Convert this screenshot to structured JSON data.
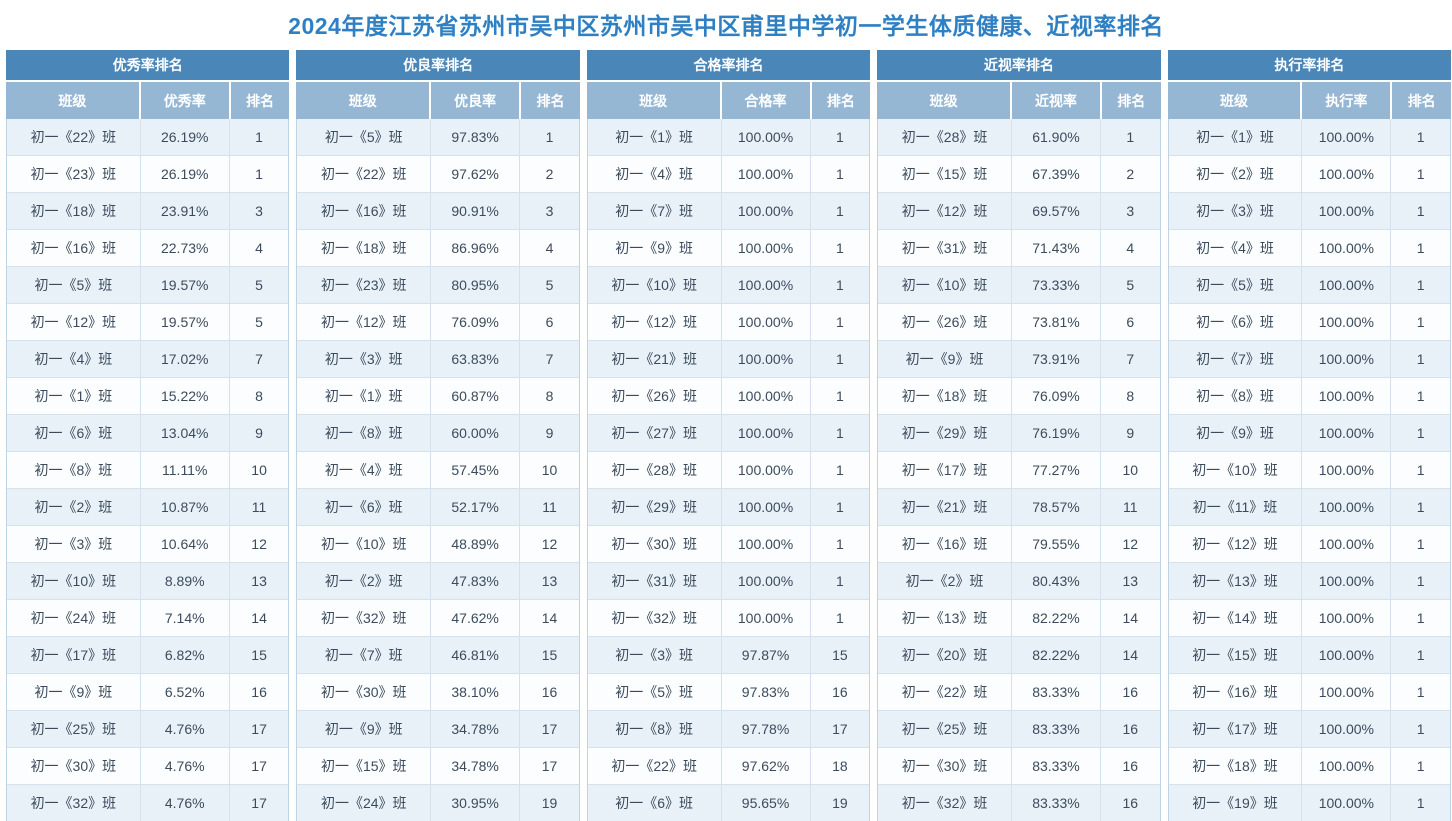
{
  "title": "2024年度江苏省苏州市吴中区苏州市吴中区甫里中学初一学生体质健康、近视率排名",
  "colors": {
    "title_color": "#2F80C3",
    "header_bg": "#4A86B8",
    "subheader_bg": "#96B7D4",
    "row_odd": "#E9F1F8",
    "row_even": "#FBFDFE",
    "row_border": "#D5E1EC",
    "outer_border": "#BFD3E3",
    "text_color": "#3B4B5C"
  },
  "tables": [
    {
      "title": "优秀率排名",
      "columns": [
        "班级",
        "优秀率",
        "排名"
      ],
      "rows": [
        [
          "初一《22》班",
          "26.19%",
          "1"
        ],
        [
          "初一《23》班",
          "26.19%",
          "1"
        ],
        [
          "初一《18》班",
          "23.91%",
          "3"
        ],
        [
          "初一《16》班",
          "22.73%",
          "4"
        ],
        [
          "初一《5》班",
          "19.57%",
          "5"
        ],
        [
          "初一《12》班",
          "19.57%",
          "5"
        ],
        [
          "初一《4》班",
          "17.02%",
          "7"
        ],
        [
          "初一《1》班",
          "15.22%",
          "8"
        ],
        [
          "初一《6》班",
          "13.04%",
          "9"
        ],
        [
          "初一《8》班",
          "11.11%",
          "10"
        ],
        [
          "初一《2》班",
          "10.87%",
          "11"
        ],
        [
          "初一《3》班",
          "10.64%",
          "12"
        ],
        [
          "初一《10》班",
          "8.89%",
          "13"
        ],
        [
          "初一《24》班",
          "7.14%",
          "14"
        ],
        [
          "初一《17》班",
          "6.82%",
          "15"
        ],
        [
          "初一《9》班",
          "6.52%",
          "16"
        ],
        [
          "初一《25》班",
          "4.76%",
          "17"
        ],
        [
          "初一《30》班",
          "4.76%",
          "17"
        ],
        [
          "初一《32》班",
          "4.76%",
          "17"
        ]
      ]
    },
    {
      "title": "优良率排名",
      "columns": [
        "班级",
        "优良率",
        "排名"
      ],
      "rows": [
        [
          "初一《5》班",
          "97.83%",
          "1"
        ],
        [
          "初一《22》班",
          "97.62%",
          "2"
        ],
        [
          "初一《16》班",
          "90.91%",
          "3"
        ],
        [
          "初一《18》班",
          "86.96%",
          "4"
        ],
        [
          "初一《23》班",
          "80.95%",
          "5"
        ],
        [
          "初一《12》班",
          "76.09%",
          "6"
        ],
        [
          "初一《3》班",
          "63.83%",
          "7"
        ],
        [
          "初一《1》班",
          "60.87%",
          "8"
        ],
        [
          "初一《8》班",
          "60.00%",
          "9"
        ],
        [
          "初一《4》班",
          "57.45%",
          "10"
        ],
        [
          "初一《6》班",
          "52.17%",
          "11"
        ],
        [
          "初一《10》班",
          "48.89%",
          "12"
        ],
        [
          "初一《2》班",
          "47.83%",
          "13"
        ],
        [
          "初一《32》班",
          "47.62%",
          "14"
        ],
        [
          "初一《7》班",
          "46.81%",
          "15"
        ],
        [
          "初一《30》班",
          "38.10%",
          "16"
        ],
        [
          "初一《9》班",
          "34.78%",
          "17"
        ],
        [
          "初一《15》班",
          "34.78%",
          "17"
        ],
        [
          "初一《24》班",
          "30.95%",
          "19"
        ]
      ]
    },
    {
      "title": "合格率排名",
      "columns": [
        "班级",
        "合格率",
        "排名"
      ],
      "rows": [
        [
          "初一《1》班",
          "100.00%",
          "1"
        ],
        [
          "初一《4》班",
          "100.00%",
          "1"
        ],
        [
          "初一《7》班",
          "100.00%",
          "1"
        ],
        [
          "初一《9》班",
          "100.00%",
          "1"
        ],
        [
          "初一《10》班",
          "100.00%",
          "1"
        ],
        [
          "初一《12》班",
          "100.00%",
          "1"
        ],
        [
          "初一《21》班",
          "100.00%",
          "1"
        ],
        [
          "初一《26》班",
          "100.00%",
          "1"
        ],
        [
          "初一《27》班",
          "100.00%",
          "1"
        ],
        [
          "初一《28》班",
          "100.00%",
          "1"
        ],
        [
          "初一《29》班",
          "100.00%",
          "1"
        ],
        [
          "初一《30》班",
          "100.00%",
          "1"
        ],
        [
          "初一《31》班",
          "100.00%",
          "1"
        ],
        [
          "初一《32》班",
          "100.00%",
          "1"
        ],
        [
          "初一《3》班",
          "97.87%",
          "15"
        ],
        [
          "初一《5》班",
          "97.83%",
          "16"
        ],
        [
          "初一《8》班",
          "97.78%",
          "17"
        ],
        [
          "初一《22》班",
          "97.62%",
          "18"
        ],
        [
          "初一《6》班",
          "95.65%",
          "19"
        ]
      ]
    },
    {
      "title": "近视率排名",
      "columns": [
        "班级",
        "近视率",
        "排名"
      ],
      "rows": [
        [
          "初一《28》班",
          "61.90%",
          "1"
        ],
        [
          "初一《15》班",
          "67.39%",
          "2"
        ],
        [
          "初一《12》班",
          "69.57%",
          "3"
        ],
        [
          "初一《31》班",
          "71.43%",
          "4"
        ],
        [
          "初一《10》班",
          "73.33%",
          "5"
        ],
        [
          "初一《26》班",
          "73.81%",
          "6"
        ],
        [
          "初一《9》班",
          "73.91%",
          "7"
        ],
        [
          "初一《18》班",
          "76.09%",
          "8"
        ],
        [
          "初一《29》班",
          "76.19%",
          "9"
        ],
        [
          "初一《17》班",
          "77.27%",
          "10"
        ],
        [
          "初一《21》班",
          "78.57%",
          "11"
        ],
        [
          "初一《16》班",
          "79.55%",
          "12"
        ],
        [
          "初一《2》班",
          "80.43%",
          "13"
        ],
        [
          "初一《13》班",
          "82.22%",
          "14"
        ],
        [
          "初一《20》班",
          "82.22%",
          "14"
        ],
        [
          "初一《22》班",
          "83.33%",
          "16"
        ],
        [
          "初一《25》班",
          "83.33%",
          "16"
        ],
        [
          "初一《30》班",
          "83.33%",
          "16"
        ],
        [
          "初一《32》班",
          "83.33%",
          "16"
        ]
      ]
    },
    {
      "title": "执行率排名",
      "columns": [
        "班级",
        "执行率",
        "排名"
      ],
      "rows": [
        [
          "初一《1》班",
          "100.00%",
          "1"
        ],
        [
          "初一《2》班",
          "100.00%",
          "1"
        ],
        [
          "初一《3》班",
          "100.00%",
          "1"
        ],
        [
          "初一《4》班",
          "100.00%",
          "1"
        ],
        [
          "初一《5》班",
          "100.00%",
          "1"
        ],
        [
          "初一《6》班",
          "100.00%",
          "1"
        ],
        [
          "初一《7》班",
          "100.00%",
          "1"
        ],
        [
          "初一《8》班",
          "100.00%",
          "1"
        ],
        [
          "初一《9》班",
          "100.00%",
          "1"
        ],
        [
          "初一《10》班",
          "100.00%",
          "1"
        ],
        [
          "初一《11》班",
          "100.00%",
          "1"
        ],
        [
          "初一《12》班",
          "100.00%",
          "1"
        ],
        [
          "初一《13》班",
          "100.00%",
          "1"
        ],
        [
          "初一《14》班",
          "100.00%",
          "1"
        ],
        [
          "初一《15》班",
          "100.00%",
          "1"
        ],
        [
          "初一《16》班",
          "100.00%",
          "1"
        ],
        [
          "初一《17》班",
          "100.00%",
          "1"
        ],
        [
          "初一《18》班",
          "100.00%",
          "1"
        ],
        [
          "初一《19》班",
          "100.00%",
          "1"
        ]
      ]
    }
  ]
}
